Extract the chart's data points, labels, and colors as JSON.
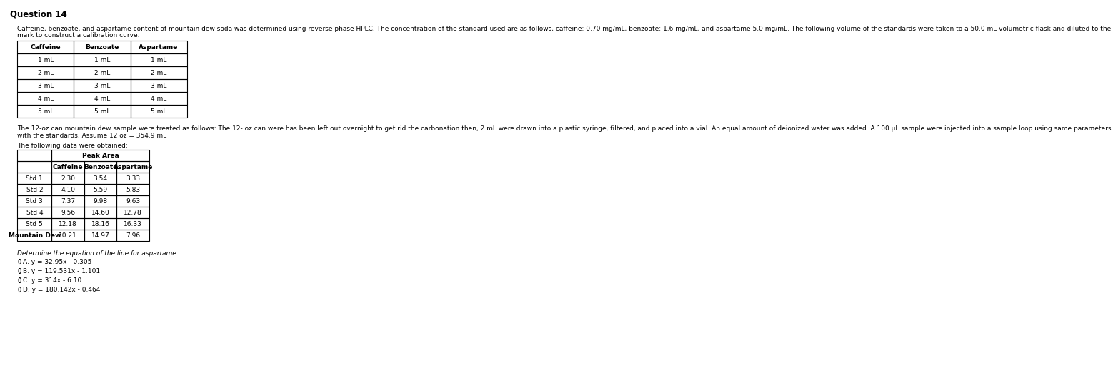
{
  "title": "Question 14",
  "intro_line1": "Caffeine, benzoate, and aspartame content of mountain dew soda was determined using reverse phase HPLC. The concentration of the standard used are as follows, caffeine: 0.70 mg/mL, benzoate: 1.6 mg/mL, and aspartame 5.0 mg/mL. The following volume of the standards were taken to a 50.0 mL volumetric flask and diluted to the",
  "intro_line2": "mark to construct a calibration curve:",
  "table1_headers": [
    "Caffeine",
    "Benzoate",
    "Aspartame"
  ],
  "table1_rows": [
    [
      "1 mL",
      "1 mL",
      "1 mL"
    ],
    [
      "2 mL",
      "2 mL",
      "2 mL"
    ],
    [
      "3 mL",
      "3 mL",
      "3 mL"
    ],
    [
      "4 mL",
      "4 mL",
      "4 mL"
    ],
    [
      "5 mL",
      "5 mL",
      "5 mL"
    ]
  ],
  "middle_line1": "The 12-oz can mountain dew sample were treated as follows: The 12- oz can were has been left out overnight to get rid the carbonation then, 2 mL were drawn into a plastic syringe, filtered, and placed into a vial. An equal amount of deionized water was added. A 100 μL sample were injected into a sample loop using same parameters",
  "middle_line2": "with the standards. Assume 12 oz = 354.9 mL",
  "data_intro": "The following data were obtained:",
  "table2_col_header": "Peak Area",
  "table2_subheaders": [
    "Caffeine",
    "Benzoate",
    "Aspartame"
  ],
  "table2_rows": [
    [
      "Std 1",
      "2.30",
      "3.54",
      "3.33"
    ],
    [
      "Std 2",
      "4.10",
      "5.59",
      "5.83"
    ],
    [
      "Std 3",
      "7.37",
      "9.98",
      "9.63"
    ],
    [
      "Std 4",
      "9.56",
      "14.60",
      "12.78"
    ],
    [
      "Std 5",
      "12.18",
      "18.16",
      "16.33"
    ],
    [
      "Mountain Dew",
      "10.21",
      "14.97",
      "7.96"
    ]
  ],
  "question_text": "Determine the equation of the line for aspartame.",
  "options": [
    "A. y = 32.95x - 0.305",
    "B. y = 119.531x - 1.101",
    "C. y = 314x - 6.10",
    "D. y = 180.142x - 0.464"
  ],
  "bg_color": "#ffffff",
  "text_color": "#000000",
  "font_size": 6.5,
  "title_font_size": 8.5
}
